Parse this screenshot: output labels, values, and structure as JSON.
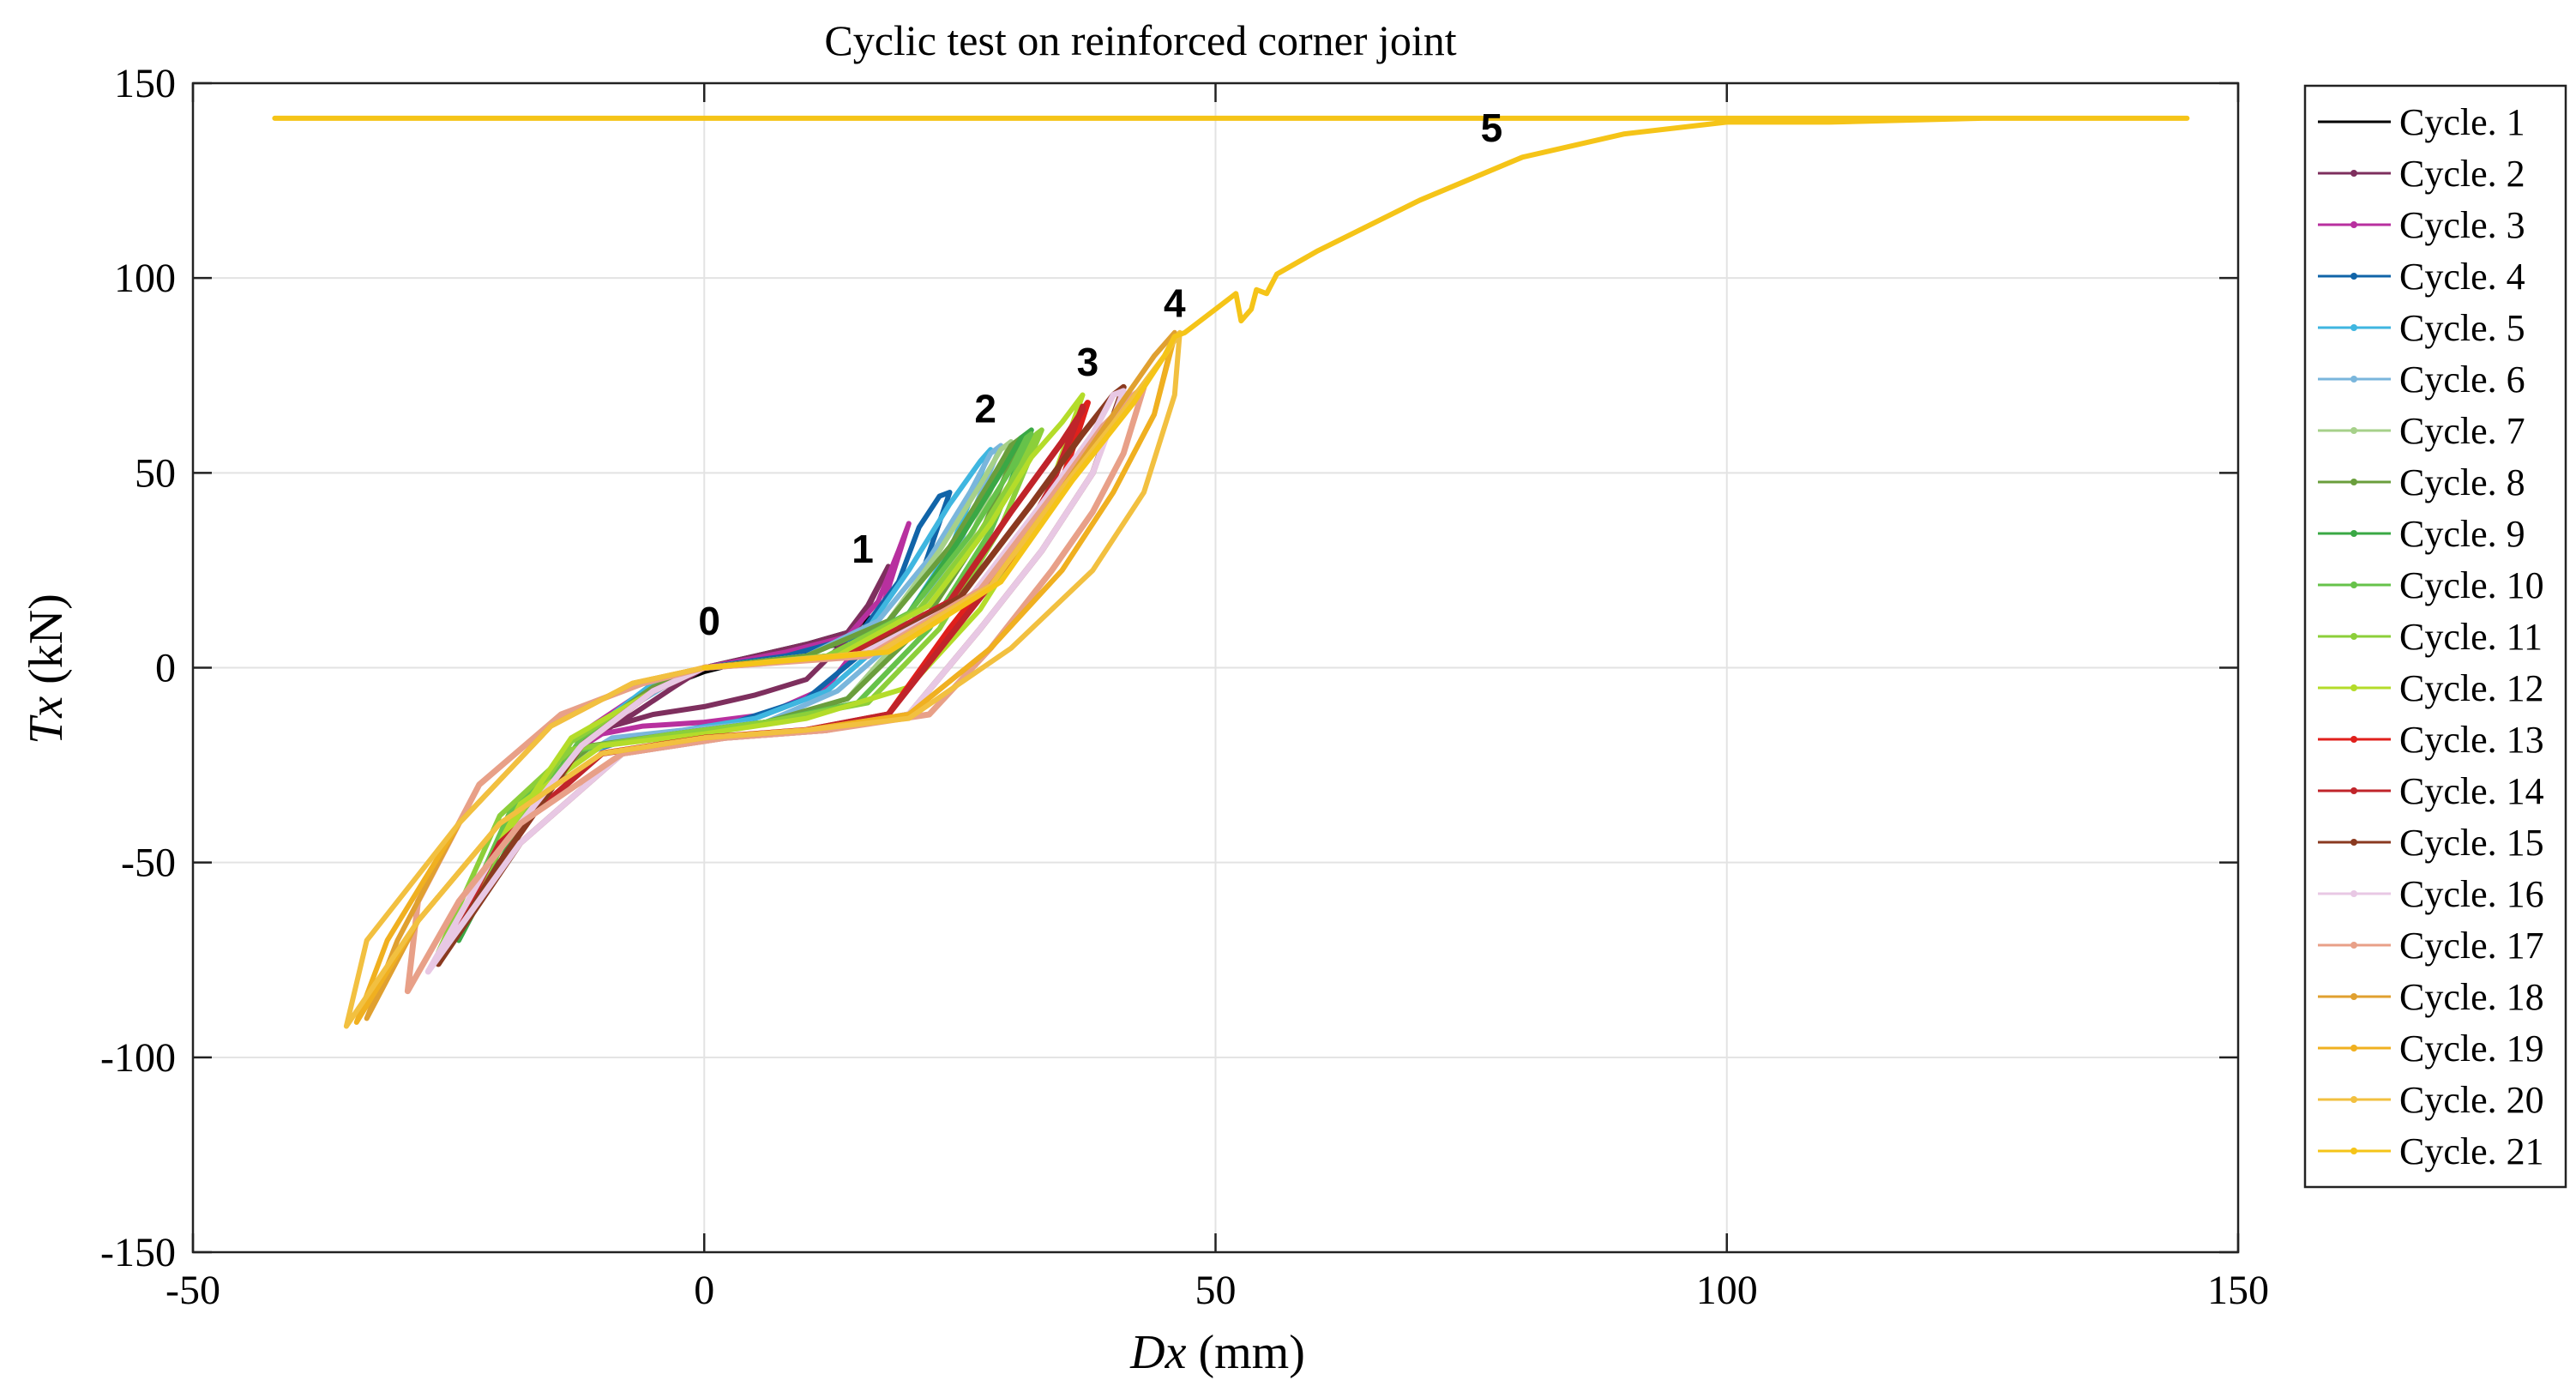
{
  "chart_data": {
    "type": "line",
    "title": "Cyclic test on reinforced corner joint",
    "xlabel": "Dx (mm)",
    "ylabel": "Tx (kN)",
    "xlabel_parts": {
      "var": "Dx",
      "unit": " (mm)"
    },
    "ylabel_parts": {
      "var": "Tx",
      "unit": " (kN)"
    },
    "xlim": [
      -50,
      150
    ],
    "ylim": [
      -150,
      150
    ],
    "xticks": [
      -50,
      0,
      50,
      100,
      150
    ],
    "yticks": [
      -150,
      -100,
      -50,
      0,
      50,
      100,
      150
    ],
    "xtick_labels": [
      "-50",
      "0",
      "50",
      "100",
      "150"
    ],
    "ytick_labels": [
      "-150",
      "-100",
      "-50",
      "0",
      "50",
      "100",
      "150"
    ],
    "grid": true,
    "legend_position": "outside-right",
    "annotations": [
      {
        "text": "0",
        "x": 0.5,
        "y": 8.5
      },
      {
        "text": "1",
        "x": 15.5,
        "y": 27
      },
      {
        "text": "2",
        "x": 27.5,
        "y": 63
      },
      {
        "text": "3",
        "x": 37.5,
        "y": 75
      },
      {
        "text": "4",
        "x": 46,
        "y": 90
      },
      {
        "text": "5",
        "x": 77,
        "y": 135
      }
    ],
    "series": [
      {
        "name": "Cycle. 1",
        "color": "#000000",
        "x": [
          0,
          5,
          10,
          14,
          16,
          13,
          8,
          3,
          0,
          -3,
          -1,
          0
        ],
        "y": [
          0,
          3,
          6,
          9,
          13,
          6,
          3,
          1,
          -1,
          -4,
          -2,
          0
        ]
      },
      {
        "name": "Cycle. 2",
        "color": "#7e2f5e",
        "x": [
          0,
          5,
          10,
          14,
          16,
          18,
          15,
          10,
          5,
          0,
          -5,
          -9,
          -12,
          -13,
          -11,
          -7,
          -3,
          0
        ],
        "y": [
          0,
          3,
          6,
          9,
          16,
          26,
          10,
          -3,
          -7,
          -10,
          -12,
          -15,
          -20,
          -25,
          -18,
          -12,
          -5,
          0
        ]
      },
      {
        "name": "Cycle. 3",
        "color": "#b8309f",
        "x": [
          0,
          8,
          14,
          17,
          19,
          20,
          17,
          12,
          6,
          0,
          -6,
          -10,
          -13,
          -11,
          -7,
          -3,
          0
        ],
        "y": [
          0,
          4,
          8,
          17,
          30,
          37,
          12,
          -5,
          -12,
          -14,
          -15,
          -17,
          -22,
          -15,
          -8,
          -3,
          0
        ]
      },
      {
        "name": "Cycle. 4",
        "color": "#1164a8",
        "x": [
          0,
          8,
          15,
          19,
          21,
          23,
          24,
          21,
          16,
          10,
          3,
          -3,
          -8,
          -12,
          -14,
          -12,
          -8,
          -4,
          0
        ],
        "y": [
          0,
          3,
          8,
          22,
          36,
          44,
          45,
          22,
          5,
          -8,
          -14,
          -17,
          -19,
          -22,
          -28,
          -20,
          -12,
          -4,
          0
        ]
      },
      {
        "name": "Cycle. 5",
        "color": "#3fb6e0",
        "x": [
          0,
          10,
          16,
          20,
          24,
          27,
          28,
          24,
          19,
          12,
          5,
          -2,
          -8,
          -13,
          -16,
          -13,
          -9,
          -5,
          0
        ],
        "y": [
          0,
          3,
          10,
          25,
          42,
          53,
          56,
          30,
          10,
          -6,
          -13,
          -16,
          -18,
          -24,
          -33,
          -22,
          -12,
          -4,
          0
        ]
      },
      {
        "name": "Cycle. 6",
        "color": "#7ab6dc",
        "x": [
          0,
          10,
          17,
          22,
          26,
          28,
          29,
          25,
          20,
          13,
          6,
          -2,
          -9,
          -14,
          -17,
          -14,
          -9,
          -4,
          0
        ],
        "y": [
          0,
          3,
          12,
          28,
          45,
          55,
          57,
          32,
          10,
          -6,
          -14,
          -16,
          -18,
          -26,
          -35,
          -24,
          -13,
          -5,
          0
        ]
      },
      {
        "name": "Cycle. 7",
        "color": "#a6d08a",
        "x": [
          0,
          10,
          18,
          23,
          27,
          29,
          30,
          26,
          20,
          14,
          6,
          -2,
          -10,
          -16,
          -20,
          -16,
          -10,
          -5,
          0
        ],
        "y": [
          0,
          3,
          12,
          30,
          47,
          56,
          58,
          33,
          10,
          -8,
          -14,
          -17,
          -20,
          -30,
          -45,
          -30,
          -15,
          -5,
          0
        ]
      },
      {
        "name": "Cycle. 8",
        "color": "#6a9e3c",
        "x": [
          0,
          10,
          18,
          24,
          28,
          30,
          31,
          27,
          21,
          14,
          6,
          -3,
          -11,
          -17,
          -22,
          -17,
          -11,
          -5,
          0
        ],
        "y": [
          0,
          3,
          12,
          31,
          48,
          57,
          59,
          34,
          10,
          -8,
          -14,
          -17,
          -20,
          -32,
          -55,
          -35,
          -16,
          -5,
          0
        ]
      },
      {
        "name": "Cycle. 9",
        "color": "#3aa845",
        "x": [
          0,
          12,
          20,
          25,
          29,
          31,
          32,
          28,
          22,
          15,
          6,
          -3,
          -12,
          -18,
          -24,
          -19,
          -12,
          -5,
          0
        ],
        "y": [
          0,
          3,
          14,
          33,
          50,
          59,
          61,
          35,
          10,
          -9,
          -14,
          -17,
          -21,
          -35,
          -70,
          -45,
          -18,
          -6,
          0
        ]
      },
      {
        "name": "Cycle. 10",
        "color": "#66c24a",
        "x": [
          0,
          12,
          20,
          26,
          30,
          31.5,
          32,
          28,
          22,
          15,
          6,
          -3,
          -12,
          -19,
          -25,
          -19,
          -12,
          -5,
          0
        ],
        "y": [
          0,
          3,
          14,
          34,
          51,
          59,
          60,
          35,
          10,
          -9,
          -14,
          -17,
          -21,
          -37,
          -72,
          -46,
          -18,
          -6,
          0
        ]
      },
      {
        "name": "Cycle. 11",
        "color": "#8ccf3a",
        "x": [
          0,
          12,
          21,
          27,
          31,
          32.5,
          33,
          29,
          23,
          16,
          6,
          -3,
          -13,
          -20,
          -26,
          -20,
          -13,
          -5,
          0
        ],
        "y": [
          0,
          3,
          15,
          35,
          52,
          60,
          61,
          36,
          10,
          -9,
          -14,
          -17,
          -21,
          -38,
          -73,
          -47,
          -19,
          -6,
          0
        ]
      },
      {
        "name": "Cycle. 12",
        "color": "#b4dc2a",
        "x": [
          0,
          13,
          22,
          28,
          32,
          35,
          37,
          33,
          27,
          20,
          10,
          0,
          -10,
          -18,
          -25,
          -20,
          -13,
          -5,
          0
        ],
        "y": [
          0,
          3,
          16,
          37,
          54,
          63,
          70,
          40,
          15,
          -5,
          -13,
          -17,
          -20,
          -35,
          -70,
          -45,
          -18,
          -6,
          0
        ]
      },
      {
        "name": "Cycle. 13",
        "color": "#e0201c",
        "x": [
          0,
          14,
          24,
          30,
          35,
          37,
          37.5,
          35,
          30,
          24,
          18,
          10,
          0,
          -10,
          -20,
          -26,
          -20,
          -12,
          -5,
          0
        ],
        "y": [
          0,
          3,
          17,
          40,
          58,
          66,
          68,
          48,
          30,
          10,
          -12,
          -16,
          -18,
          -22,
          -45,
          -75,
          -50,
          -20,
          -6,
          0
        ]
      },
      {
        "name": "Cycle. 14",
        "color": "#c0242a",
        "x": [
          0,
          14,
          24,
          30,
          35,
          37,
          37,
          34,
          30,
          24,
          18,
          10,
          0,
          -10,
          -20,
          -26,
          -20,
          -12,
          -5,
          0
        ],
        "y": [
          0,
          3,
          17,
          40,
          58,
          66,
          67,
          47,
          28,
          8,
          -12,
          -16,
          -18,
          -22,
          -45,
          -76,
          -50,
          -20,
          -6,
          0
        ]
      },
      {
        "name": "Cycle. 15",
        "color": "#8a3a20",
        "x": [
          0,
          15,
          25,
          32,
          37,
          40,
          41,
          38,
          33,
          27,
          20,
          12,
          2,
          -8,
          -18,
          -26,
          -20,
          -12,
          -5,
          0
        ],
        "y": [
          0,
          3,
          18,
          42,
          60,
          70,
          72,
          50,
          30,
          10,
          -12,
          -16,
          -18,
          -22,
          -45,
          -76,
          -50,
          -20,
          -6,
          0
        ]
      },
      {
        "name": "Cycle. 16",
        "color": "#e8c8e4",
        "x": [
          0,
          15,
          26,
          33,
          38,
          40,
          41,
          38,
          33,
          27,
          20,
          12,
          2,
          -8,
          -18,
          -27,
          -21,
          -12,
          -5,
          0
        ],
        "y": [
          0,
          3,
          18,
          42,
          60,
          70,
          71,
          50,
          30,
          10,
          -12,
          -16,
          -18,
          -22,
          -45,
          -78,
          -50,
          -20,
          -6,
          0
        ]
      },
      {
        "name": "Cycle. 17",
        "color": "#e8a088",
        "x": [
          0,
          16,
          27,
          34,
          39,
          42,
          43,
          41,
          38,
          34,
          28,
          22,
          12,
          2,
          -8,
          -18,
          -24,
          -29,
          -28,
          -22,
          -14,
          -6,
          0
        ],
        "y": [
          0,
          3,
          20,
          44,
          62,
          70,
          72,
          55,
          40,
          25,
          5,
          -12,
          -16,
          -18,
          -22,
          -40,
          -60,
          -83,
          -60,
          -30,
          -12,
          -4,
          0
        ]
      },
      {
        "name": "Cycle. 18",
        "color": "#e0a030",
        "x": [
          0,
          17,
          28,
          35,
          40,
          44,
          46,
          44,
          40,
          35,
          28,
          20,
          10,
          0,
          -10,
          -20,
          -28,
          -33,
          -30,
          -24,
          -15,
          -7,
          0
        ],
        "y": [
          0,
          4,
          21,
          46,
          65,
          80,
          86,
          65,
          45,
          25,
          5,
          -12,
          -16,
          -18,
          -22,
          -40,
          -65,
          -90,
          -70,
          -40,
          -15,
          -4,
          0
        ]
      },
      {
        "name": "Cycle. 19",
        "color": "#f0b020",
        "x": [
          0,
          17,
          28,
          35,
          41,
          45,
          46,
          44,
          40,
          35,
          28,
          20,
          10,
          0,
          -10,
          -20,
          -28,
          -34,
          -31,
          -24,
          -15,
          -7,
          0
        ],
        "y": [
          0,
          4,
          21,
          46,
          66,
          80,
          85,
          65,
          45,
          25,
          5,
          -12,
          -16,
          -18,
          -22,
          -40,
          -65,
          -91,
          -70,
          -40,
          -15,
          -4,
          0
        ]
      },
      {
        "name": "Cycle. 20",
        "color": "#f2c040",
        "x": [
          0,
          17,
          28,
          35,
          41,
          45,
          46.5,
          46,
          43,
          38,
          30,
          20,
          10,
          0,
          -10,
          -20,
          -28,
          -35,
          -33,
          -24,
          -15,
          -7,
          0
        ],
        "y": [
          0,
          4,
          21,
          46,
          66,
          80,
          86,
          70,
          45,
          25,
          5,
          -13,
          -16,
          -18,
          -22,
          -40,
          -65,
          -92,
          -70,
          -40,
          -15,
          -4,
          0
        ]
      },
      {
        "name": "Cycle. 21",
        "color": "#f5c418",
        "x": [
          0,
          18,
          29,
          36,
          42,
          45,
          46,
          47,
          50,
          52,
          52.5,
          53.5,
          54,
          55,
          56,
          60,
          70,
          80,
          90,
          100,
          110,
          125,
          142,
          145,
          140,
          130,
          110,
          90,
          70,
          60,
          50,
          44,
          38,
          30,
          20,
          10,
          0,
          -10,
          -20,
          -30,
          -36,
          -42,
          -40,
          -32,
          -25,
          -15,
          -6,
          0
        ],
        "y": [
          0,
          4,
          22,
          48,
          68,
          80,
          85,
          86,
          92,
          96,
          89,
          92,
          97,
          96,
          101,
          107,
          120,
          131,
          137,
          140,
          140,
          141,
          141,
          141,
          141,
          141,
          141,
          141,
          141,
          141,
          141,
          141,
          141,
          141,
          141,
          141,
          141,
          141,
          141,
          141,
          141,
          141,
          141,
          141,
          141,
          141,
          141,
          141
        ]
      }
    ]
  }
}
